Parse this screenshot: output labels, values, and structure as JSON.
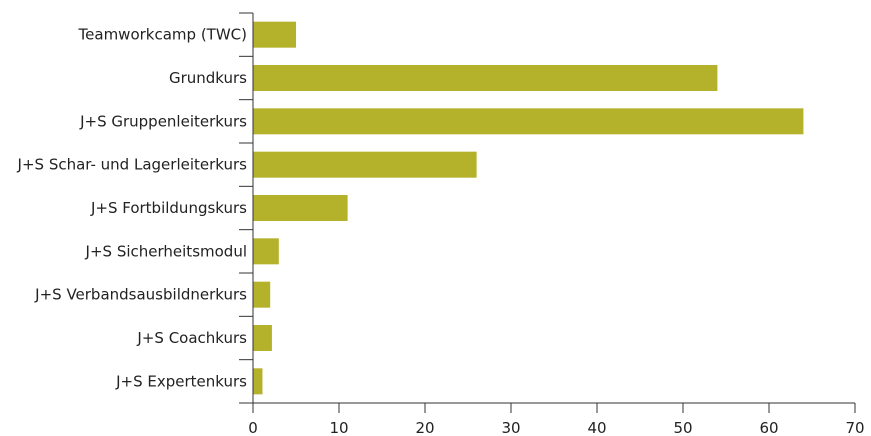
{
  "chart_data": {
    "type": "bar",
    "orientation": "horizontal",
    "categories": [
      "Teamworkcamp (TWC)",
      "Grundkurs",
      "J+S Gruppenleiterkurs",
      "J+S Schar- und Lagerleiterkurs",
      "J+S Fortbildungskurs",
      "J+S Sicherheitsmodul",
      "J+S Verbandsausbildnerkurs",
      "J+S Coachkurs",
      "J+S Expertenkurs"
    ],
    "values": [
      5,
      54,
      64,
      26,
      11,
      3,
      2,
      2.2,
      1.1
    ],
    "xlim": [
      0,
      70
    ],
    "xticks": [
      "0",
      "10",
      "20",
      "30",
      "40",
      "50",
      "60",
      "70"
    ],
    "bar_color": "#b4b12a",
    "grid": false,
    "title": "",
    "xlabel": "",
    "ylabel": ""
  }
}
